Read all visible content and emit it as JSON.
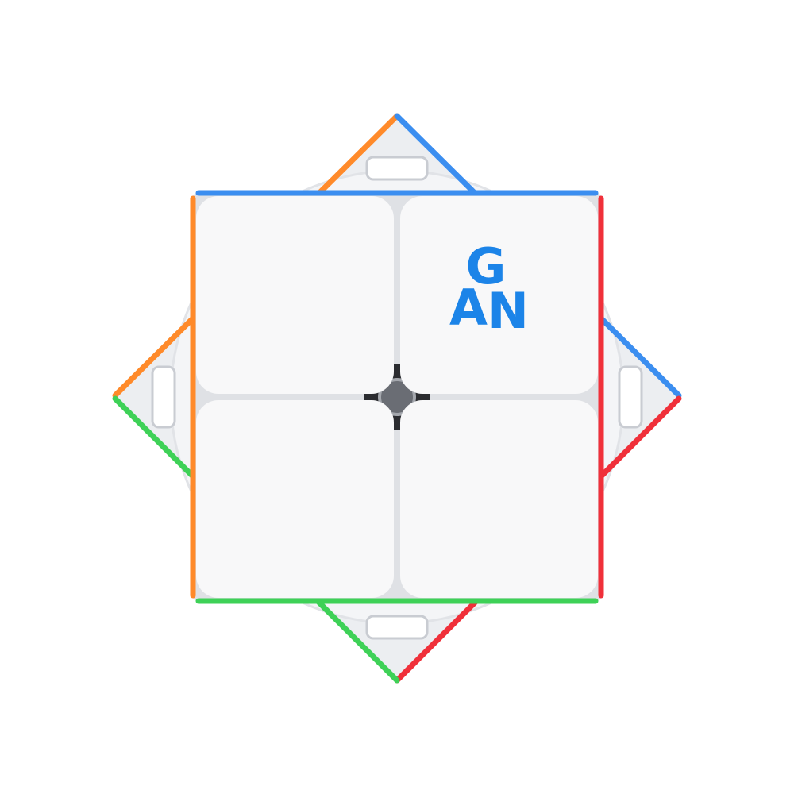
{
  "logo": {
    "letters": [
      "G",
      "A",
      "N"
    ]
  }
}
